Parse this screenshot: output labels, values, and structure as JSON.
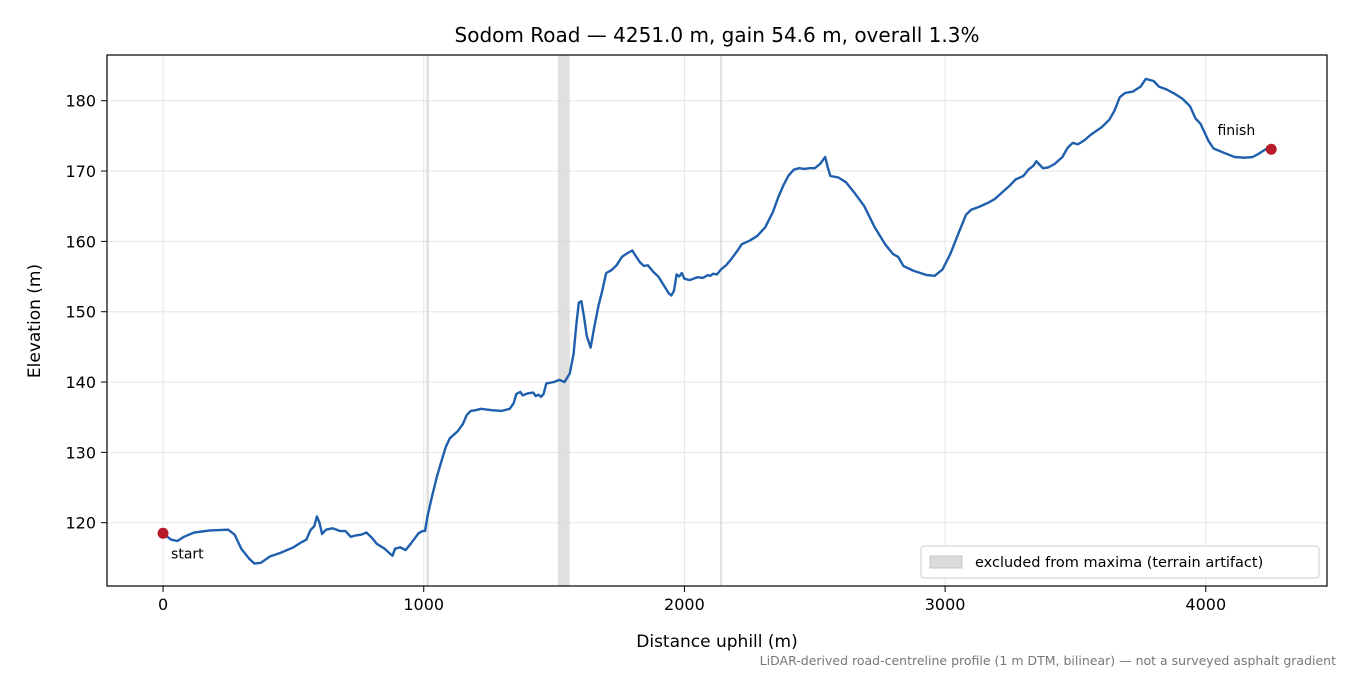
{
  "chart_data": {
    "type": "line",
    "title": "Sodom Road — 4251.0 m, gain 54.6 m, overall 1.3%",
    "xlabel": "Distance uphill (m)",
    "ylabel": "Elevation (m)",
    "xlim": [
      -215,
      4465
    ],
    "ylim": [
      111,
      186.5
    ],
    "xticks": [
      0,
      1000,
      2000,
      3000,
      4000
    ],
    "yticks": [
      120,
      130,
      140,
      150,
      160,
      170,
      180
    ],
    "grid": true,
    "series": [
      {
        "color": "#1f5fad",
        "points": [
          [
            0,
            118.5
          ],
          [
            30,
            117.6
          ],
          [
            55,
            117.4
          ],
          [
            80,
            118.0
          ],
          [
            120,
            118.6
          ],
          [
            180,
            118.9
          ],
          [
            250,
            119.0
          ],
          [
            275,
            118.3
          ],
          [
            300,
            116.3
          ],
          [
            330,
            114.9
          ],
          [
            350,
            114.2
          ],
          [
            375,
            114.3
          ],
          [
            410,
            115.2
          ],
          [
            450,
            115.7
          ],
          [
            500,
            116.5
          ],
          [
            530,
            117.2
          ],
          [
            550,
            117.6
          ],
          [
            565,
            118.9
          ],
          [
            580,
            119.5
          ],
          [
            590,
            120.9
          ],
          [
            600,
            120.0
          ],
          [
            610,
            118.4
          ],
          [
            625,
            119.0
          ],
          [
            650,
            119.2
          ],
          [
            680,
            118.8
          ],
          [
            700,
            118.8
          ],
          [
            720,
            118.0
          ],
          [
            740,
            118.2
          ],
          [
            760,
            118.3
          ],
          [
            780,
            118.6
          ],
          [
            800,
            117.9
          ],
          [
            820,
            117.0
          ],
          [
            850,
            116.3
          ],
          [
            880,
            115.3
          ],
          [
            890,
            116.3
          ],
          [
            910,
            116.5
          ],
          [
            930,
            116.1
          ],
          [
            950,
            117.0
          ],
          [
            980,
            118.5
          ],
          [
            995,
            118.8
          ],
          [
            1005,
            118.8
          ],
          [
            1015,
            121.0
          ],
          [
            1030,
            123.5
          ],
          [
            1050,
            126.5
          ],
          [
            1070,
            129.0
          ],
          [
            1085,
            130.8
          ],
          [
            1100,
            132.0
          ],
          [
            1130,
            133.0
          ],
          [
            1150,
            134.0
          ],
          [
            1165,
            135.3
          ],
          [
            1180,
            135.9
          ],
          [
            1200,
            136.0
          ],
          [
            1220,
            136.2
          ],
          [
            1260,
            136.0
          ],
          [
            1300,
            135.9
          ],
          [
            1330,
            136.2
          ],
          [
            1345,
            137.0
          ],
          [
            1355,
            138.3
          ],
          [
            1370,
            138.6
          ],
          [
            1380,
            138.1
          ],
          [
            1400,
            138.4
          ],
          [
            1420,
            138.5
          ],
          [
            1430,
            138.0
          ],
          [
            1440,
            138.2
          ],
          [
            1450,
            137.9
          ],
          [
            1460,
            138.3
          ],
          [
            1470,
            139.8
          ],
          [
            1500,
            140.0
          ],
          [
            1520,
            140.3
          ],
          [
            1540,
            140.0
          ],
          [
            1560,
            141.2
          ],
          [
            1575,
            144.0
          ],
          [
            1585,
            148.0
          ],
          [
            1595,
            151.3
          ],
          [
            1605,
            151.5
          ],
          [
            1615,
            149.2
          ],
          [
            1625,
            146.6
          ],
          [
            1640,
            144.9
          ],
          [
            1655,
            148.0
          ],
          [
            1670,
            150.8
          ],
          [
            1685,
            153.0
          ],
          [
            1700,
            155.5
          ],
          [
            1720,
            155.9
          ],
          [
            1740,
            156.6
          ],
          [
            1760,
            157.8
          ],
          [
            1780,
            158.3
          ],
          [
            1800,
            158.7
          ],
          [
            1810,
            158.1
          ],
          [
            1830,
            157.0
          ],
          [
            1845,
            156.5
          ],
          [
            1860,
            156.6
          ],
          [
            1880,
            155.7
          ],
          [
            1900,
            155.0
          ],
          [
            1920,
            153.8
          ],
          [
            1940,
            152.6
          ],
          [
            1950,
            152.3
          ],
          [
            1960,
            153.0
          ],
          [
            1970,
            155.3
          ],
          [
            1980,
            155.0
          ],
          [
            1990,
            155.5
          ],
          [
            2000,
            154.7
          ],
          [
            2020,
            154.5
          ],
          [
            2050,
            154.9
          ],
          [
            2070,
            154.8
          ],
          [
            2090,
            155.2
          ],
          [
            2100,
            155.1
          ],
          [
            2110,
            155.4
          ],
          [
            2125,
            155.3
          ],
          [
            2140,
            156.0
          ],
          [
            2160,
            156.6
          ],
          [
            2180,
            157.5
          ],
          [
            2200,
            158.5
          ],
          [
            2220,
            159.6
          ],
          [
            2250,
            160.1
          ],
          [
            2280,
            160.8
          ],
          [
            2310,
            162.0
          ],
          [
            2340,
            164.2
          ],
          [
            2360,
            166.3
          ],
          [
            2380,
            168.0
          ],
          [
            2400,
            169.4
          ],
          [
            2420,
            170.2
          ],
          [
            2440,
            170.4
          ],
          [
            2460,
            170.3
          ],
          [
            2480,
            170.4
          ],
          [
            2500,
            170.4
          ],
          [
            2520,
            171.0
          ],
          [
            2540,
            172.0
          ],
          [
            2550,
            170.5
          ],
          [
            2560,
            169.3
          ],
          [
            2590,
            169.1
          ],
          [
            2620,
            168.4
          ],
          [
            2650,
            167.0
          ],
          [
            2690,
            165.0
          ],
          [
            2730,
            162.0
          ],
          [
            2770,
            159.6
          ],
          [
            2800,
            158.2
          ],
          [
            2820,
            157.8
          ],
          [
            2840,
            156.5
          ],
          [
            2880,
            155.8
          ],
          [
            2930,
            155.2
          ],
          [
            2960,
            155.1
          ],
          [
            2990,
            156.0
          ],
          [
            3020,
            158.2
          ],
          [
            3050,
            161.0
          ],
          [
            3080,
            163.8
          ],
          [
            3100,
            164.5
          ],
          [
            3130,
            164.9
          ],
          [
            3160,
            165.4
          ],
          [
            3190,
            166.0
          ],
          [
            3220,
            167.0
          ],
          [
            3250,
            168.0
          ],
          [
            3270,
            168.8
          ],
          [
            3300,
            169.3
          ],
          [
            3320,
            170.2
          ],
          [
            3340,
            170.8
          ],
          [
            3350,
            171.4
          ],
          [
            3360,
            171.0
          ],
          [
            3375,
            170.4
          ],
          [
            3395,
            170.5
          ],
          [
            3420,
            171.0
          ],
          [
            3450,
            172.0
          ],
          [
            3470,
            173.3
          ],
          [
            3490,
            174.0
          ],
          [
            3510,
            173.8
          ],
          [
            3535,
            174.4
          ],
          [
            3560,
            175.2
          ],
          [
            3600,
            176.2
          ],
          [
            3630,
            177.3
          ],
          [
            3650,
            178.6
          ],
          [
            3670,
            180.5
          ],
          [
            3690,
            181.1
          ],
          [
            3720,
            181.3
          ],
          [
            3750,
            182.0
          ],
          [
            3770,
            183.1
          ],
          [
            3800,
            182.8
          ],
          [
            3820,
            182.0
          ],
          [
            3850,
            181.6
          ],
          [
            3880,
            181.0
          ],
          [
            3910,
            180.3
          ],
          [
            3940,
            179.2
          ],
          [
            3960,
            177.5
          ],
          [
            3980,
            176.7
          ],
          [
            4010,
            174.3
          ],
          [
            4030,
            173.2
          ],
          [
            4070,
            172.6
          ],
          [
            4110,
            172.0
          ],
          [
            4150,
            171.9
          ],
          [
            4180,
            172.0
          ],
          [
            4200,
            172.4
          ],
          [
            4230,
            173.1
          ],
          [
            4251,
            173.1
          ]
        ]
      }
    ],
    "markers": [
      {
        "x": 0,
        "y": 118.5,
        "label": "start",
        "color": "#b81a2a"
      },
      {
        "x": 4251,
        "y": 173.1,
        "label": "finish",
        "color": "#b81a2a"
      }
    ],
    "excluded_spans": [
      [
        1010,
        1020
      ],
      [
        1515,
        1560
      ],
      [
        2137,
        2143
      ]
    ],
    "excluded_color": "#d6d6d6",
    "legend": {
      "position": "lower-right",
      "label": "excluded from maxima (terrain artifact)"
    },
    "footnote": "LiDAR-derived road-centreline profile (1 m DTM, bilinear) — not a surveyed asphalt gradient"
  }
}
